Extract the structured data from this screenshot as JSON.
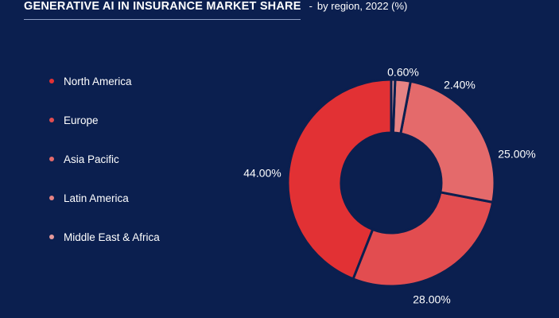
{
  "header": {
    "title": "GENERATIVE AI IN INSURANCE MARKET SHARE",
    "separator": "-",
    "subtitle": "by region, 2022 (%)"
  },
  "chart_data": {
    "type": "pie",
    "donut": true,
    "title": "GENERATIVE AI IN INSURANCE MARKET SHARE",
    "subtitle": "by region, 2022 (%)",
    "legend_position": "left",
    "categories": [
      "North America",
      "Europe",
      "Asia Pacific",
      "Latin America",
      "Middle East & Africa"
    ],
    "values": [
      44.0,
      28.0,
      25.0,
      2.4,
      0.6
    ],
    "labels": [
      "44.00%",
      "28.00%",
      "25.00%",
      "2.40%",
      "0.60%"
    ],
    "colors": [
      "#e23134",
      "#e24d50",
      "#e46a6b",
      "#e68384",
      "#e59a9c"
    ]
  }
}
